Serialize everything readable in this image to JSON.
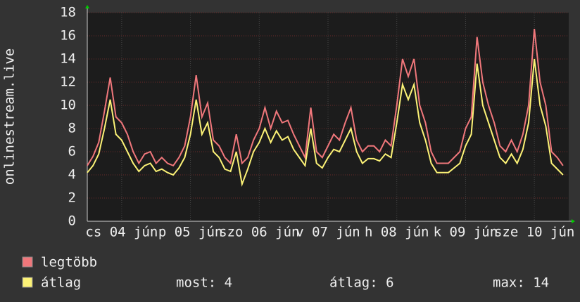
{
  "chart_data": {
    "type": "line",
    "y_label": "onlinestream.live",
    "x": [
      0,
      2,
      4,
      6,
      8,
      10,
      12,
      14,
      16,
      18,
      20,
      22,
      24,
      26,
      28,
      30,
      32,
      34,
      36,
      38,
      40,
      42,
      44,
      46,
      48,
      50,
      52,
      54,
      56,
      58,
      60,
      62,
      64,
      66,
      68,
      70,
      72,
      74,
      76,
      78,
      80,
      82,
      84,
      86,
      88,
      90,
      92,
      94,
      96,
      98,
      100,
      102,
      104,
      106,
      108,
      110,
      112,
      114,
      116,
      118,
      120,
      122,
      124,
      126,
      128,
      130,
      132,
      134,
      136,
      138,
      140,
      142,
      144,
      146,
      148,
      150,
      152,
      154,
      156,
      158,
      160,
      162,
      164,
      166
    ],
    "xlim": [
      0,
      168
    ],
    "xticks": [
      {
        "value": 12,
        "label": "cs 04 jún"
      },
      {
        "value": 36,
        "label": "p 05 jún"
      },
      {
        "value": 60,
        "label": "szo 06 jún"
      },
      {
        "value": 84,
        "label": "v 07 jún"
      },
      {
        "value": 108,
        "label": "h 08 jún"
      },
      {
        "value": 132,
        "label": "k 09 jún"
      },
      {
        "value": 156,
        "label": "sze 10 jún"
      }
    ],
    "ylim": [
      0,
      18
    ],
    "yticks": [
      0,
      2,
      4,
      6,
      8,
      10,
      12,
      14,
      16,
      18
    ],
    "grid": true,
    "series": [
      {
        "name": "legtöbb",
        "color": "#f0777b",
        "values": [
          4.8,
          5.6,
          6.8,
          9.5,
          12.4,
          9,
          8.5,
          7.5,
          6,
          5,
          5.8,
          6,
          5,
          5.5,
          5,
          4.8,
          5.5,
          6.5,
          9,
          12.6,
          9,
          10.2,
          7,
          6.5,
          5.5,
          5,
          7.5,
          5,
          5.5,
          7,
          8,
          9.8,
          8,
          9.5,
          8.5,
          8.7,
          7.5,
          6.5,
          5.5,
          9.8,
          6,
          5.5,
          6.5,
          7.5,
          7,
          8.5,
          9.8,
          7,
          6,
          6.5,
          6.5,
          6,
          7,
          6.5,
          10,
          14,
          12.5,
          14,
          10,
          8.5,
          6,
          5,
          5,
          5,
          5.5,
          6,
          8,
          9,
          15.9,
          12,
          10,
          8.5,
          6.5,
          6,
          7,
          6,
          7.5,
          10,
          16.6,
          12,
          10,
          6,
          5.5,
          4.8
        ]
      },
      {
        "name": "átlag",
        "color": "#fcf276",
        "values": [
          4.2,
          4.8,
          5.8,
          8,
          10.5,
          7.5,
          7,
          6,
          5,
          4.3,
          4.8,
          5,
          4.3,
          4.5,
          4.2,
          4,
          4.6,
          5.5,
          7.5,
          10.5,
          7.5,
          8.5,
          6,
          5.5,
          4.5,
          4.3,
          6,
          3.2,
          4.5,
          6,
          6.8,
          8,
          6.8,
          7.8,
          7,
          7.3,
          6.2,
          5.5,
          4.8,
          8,
          5,
          4.6,
          5.5,
          6.2,
          6,
          7,
          8,
          6,
          5,
          5.4,
          5.4,
          5.2,
          5.8,
          5.5,
          8.5,
          11.8,
          10.5,
          11.8,
          8.5,
          7,
          5,
          4.2,
          4.2,
          4.2,
          4.6,
          5,
          6.5,
          7.5,
          13.6,
          10,
          8.5,
          7,
          5.5,
          5,
          5.8,
          5,
          6.2,
          8.5,
          14,
          10,
          8.2,
          5,
          4.5,
          4
        ]
      }
    ],
    "stats": [
      "most: 4",
      "átlag: 6",
      "max: 14"
    ]
  }
}
